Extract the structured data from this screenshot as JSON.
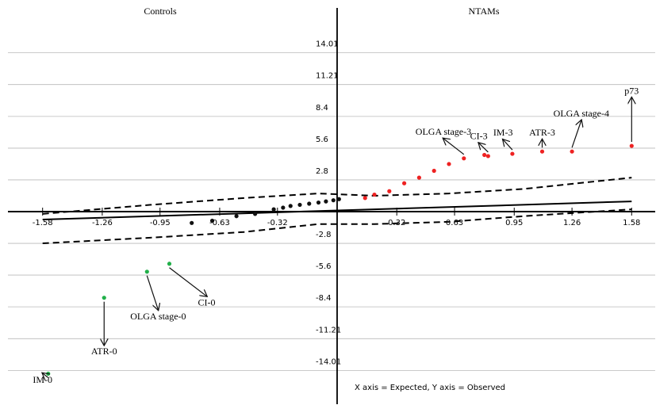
{
  "panels": {
    "left_label": "Controls",
    "right_label": "NTAMs"
  },
  "axis_note": "X axis = Expected, Y axis = Observed",
  "chart_data": {
    "type": "scatter",
    "title": "",
    "xlabel": "Expected",
    "ylabel": "Observed",
    "xlim": [
      -1.6,
      1.65
    ],
    "ylim": [
      -15.6,
      16.2
    ],
    "grid": true,
    "x_ticks": [
      {
        "value": -1.58,
        "label": "-1.58"
      },
      {
        "value": -1.26,
        "label": "-1.26"
      },
      {
        "value": -0.95,
        "label": "-0.95"
      },
      {
        "value": -0.63,
        "label": "-0.63"
      },
      {
        "value": -0.32,
        "label": "-0.32"
      },
      {
        "value": 0.32,
        "label": "0.32"
      },
      {
        "value": 0.63,
        "label": "0.63"
      },
      {
        "value": 0.95,
        "label": "0.95"
      },
      {
        "value": 1.26,
        "label": "1.26"
      },
      {
        "value": 1.58,
        "label": "1.58"
      }
    ],
    "y_ticks": [
      {
        "value": 14.01,
        "label": "14.01"
      },
      {
        "value": 11.21,
        "label": "11.21"
      },
      {
        "value": 8.4,
        "label": "8.4"
      },
      {
        "value": 5.6,
        "label": "5.6"
      },
      {
        "value": 2.8,
        "label": "2.8"
      },
      {
        "value": -2.8,
        "label": "-2.8"
      },
      {
        "value": -5.6,
        "label": "-5.6"
      },
      {
        "value": -8.4,
        "label": "-8.4"
      },
      {
        "value": -11.21,
        "label": "-11.21"
      },
      {
        "value": -14.01,
        "label": "-14.01"
      }
    ],
    "fit_line": {
      "x": [
        -1.58,
        1.58
      ],
      "y": [
        -0.7,
        0.9
      ]
    },
    "confidence_upper": {
      "x": [
        -1.58,
        -1.0,
        -0.5,
        -0.1,
        0.2,
        0.6,
        1.0,
        1.58
      ],
      "y": [
        -0.2,
        0.6,
        1.2,
        1.6,
        1.4,
        1.6,
        2.0,
        3.0
      ]
    },
    "confidence_lower": {
      "x": [
        -1.58,
        -1.0,
        -0.5,
        -0.1,
        0.2,
        0.6,
        1.0,
        1.58
      ],
      "y": [
        -2.8,
        -2.3,
        -1.8,
        -1.1,
        -1.1,
        -0.9,
        -0.4,
        0.2
      ]
    },
    "series": [
      {
        "color": "#22b04a",
        "points": [
          {
            "x": -1.55,
            "y": -14.3
          },
          {
            "x": -1.25,
            "y": -7.6
          },
          {
            "x": -1.02,
            "y": -5.3
          },
          {
            "x": -0.9,
            "y": -4.6
          }
        ]
      },
      {
        "color": "#111111",
        "points": [
          {
            "x": -0.78,
            "y": -1.0
          },
          {
            "x": -0.67,
            "y": -0.8
          },
          {
            "x": -0.54,
            "y": -0.4
          },
          {
            "x": -0.44,
            "y": -0.2
          },
          {
            "x": -0.34,
            "y": 0.2
          },
          {
            "x": -0.29,
            "y": 0.35
          },
          {
            "x": -0.25,
            "y": 0.5
          },
          {
            "x": -0.2,
            "y": 0.6
          },
          {
            "x": -0.15,
            "y": 0.7
          },
          {
            "x": -0.1,
            "y": 0.8
          },
          {
            "x": -0.06,
            "y": 0.9
          },
          {
            "x": -0.02,
            "y": 1.0
          },
          {
            "x": 0.01,
            "y": 1.1
          }
        ]
      },
      {
        "color": "#ee2222",
        "points": [
          {
            "x": 0.15,
            "y": 1.2
          },
          {
            "x": 0.2,
            "y": 1.5
          },
          {
            "x": 0.28,
            "y": 1.8
          },
          {
            "x": 0.36,
            "y": 2.5
          },
          {
            "x": 0.44,
            "y": 3.0
          },
          {
            "x": 0.52,
            "y": 3.6
          },
          {
            "x": 0.6,
            "y": 4.2
          },
          {
            "x": 0.68,
            "y": 4.7
          },
          {
            "x": 0.79,
            "y": 5.0
          },
          {
            "x": 0.81,
            "y": 4.9
          },
          {
            "x": 0.94,
            "y": 5.1
          },
          {
            "x": 1.1,
            "y": 5.3
          },
          {
            "x": 1.26,
            "y": 5.3
          },
          {
            "x": 1.58,
            "y": 5.8
          }
        ]
      }
    ],
    "annotations": [
      {
        "text": "p73",
        "x": 1.58,
        "y": 5.8,
        "label_x": 1.58,
        "label_y": 10.4
      },
      {
        "text": "OLGA stage-4",
        "x": 1.26,
        "y": 5.3,
        "label_x": 1.31,
        "label_y": 8.4
      },
      {
        "text": "ATR-3",
        "x": 1.1,
        "y": 5.3,
        "label_x": 1.1,
        "label_y": 6.7
      },
      {
        "text": "IM-3",
        "x": 0.94,
        "y": 5.1,
        "label_x": 0.89,
        "label_y": 6.7
      },
      {
        "text": "CI-3",
        "x": 0.81,
        "y": 4.9,
        "label_x": 0.76,
        "label_y": 6.4
      },
      {
        "text": "OLGA stage-3",
        "x": 0.68,
        "y": 4.7,
        "label_x": 0.57,
        "label_y": 6.8
      },
      {
        "text": "CI-0",
        "x": -0.9,
        "y": -4.6,
        "label_x": -0.7,
        "label_y": -8.3
      },
      {
        "text": "OLGA stage-0",
        "x": -1.02,
        "y": -5.3,
        "label_x": -0.96,
        "label_y": -9.5
      },
      {
        "text": "ATR-0",
        "x": -1.25,
        "y": -7.6,
        "label_x": -1.25,
        "label_y": -12.6
      },
      {
        "text": "IM-0",
        "x": -1.55,
        "y": -14.3,
        "label_x": -1.58,
        "label_y": -15.1
      }
    ]
  }
}
